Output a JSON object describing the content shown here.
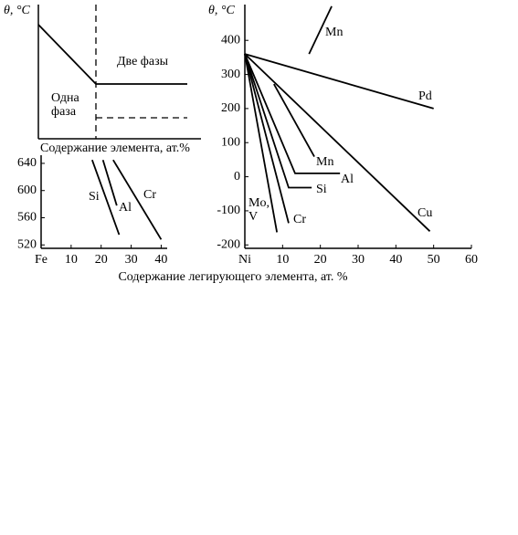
{
  "schematic": {
    "ylabel": "θ, °C",
    "two_phase": "Две фазы",
    "one_phase": "Одна фаза",
    "xlabel": "Содержание элемента, ат.%"
  },
  "shared_xlabel": "Содержание легирующего элемента, ат. %",
  "chart_data": [
    {
      "type": "line",
      "xlim": [
        0,
        42
      ],
      "ylim": [
        515,
        652
      ],
      "xticks": [
        {
          "value": 0,
          "label": "Fe"
        },
        10,
        20,
        30,
        40
      ],
      "yticks": [
        520,
        560,
        600,
        640
      ],
      "series": [
        {
          "name": "Si",
          "color": "#000000",
          "x": [
            17,
            26
          ],
          "values": [
            645,
            535
          ]
        },
        {
          "name": "Al",
          "color": "#000000",
          "x": [
            20.6,
            25.2
          ],
          "values": [
            645,
            578
          ]
        },
        {
          "name": "Cr",
          "color": "#000000",
          "x": [
            24,
            40
          ],
          "values": [
            645,
            528
          ]
        }
      ]
    },
    {
      "type": "line",
      "ylabel": "θ, °C",
      "xlim": [
        0,
        60
      ],
      "ylim": [
        -210,
        505
      ],
      "xticks": [
        {
          "value": 0,
          "label": "Ni"
        },
        10,
        20,
        30,
        40,
        50,
        60
      ],
      "yticks": [
        -200,
        -100,
        0,
        100,
        200,
        300,
        400
      ],
      "series": [
        {
          "name": "Pd",
          "color": "#000000",
          "x": [
            0,
            50
          ],
          "values": [
            360,
            200
          ]
        },
        {
          "name": "Cu",
          "color": "#000000",
          "x": [
            0,
            49
          ],
          "values": [
            360,
            -160
          ]
        },
        {
          "name": "Mn",
          "color": "#000000",
          "x": [
            17,
            23
          ],
          "values": [
            360,
            500
          ]
        },
        {
          "name": "Mn",
          "color": "#000000",
          "x": [
            7.7,
            18.4
          ],
          "values": [
            272,
            59
          ]
        },
        {
          "name": "Al",
          "color": "#000000",
          "x": [
            0,
            13.3,
            25.2
          ],
          "values": [
            360,
            10,
            10
          ]
        },
        {
          "name": "Si",
          "color": "#000000",
          "x": [
            0,
            11.6,
            17.7
          ],
          "values": [
            360,
            -32,
            -32
          ]
        },
        {
          "name": "Cr",
          "color": "#000000",
          "x": [
            0,
            11.6
          ],
          "values": [
            360,
            -136
          ]
        },
        {
          "name": "Mo, V",
          "color": "#000000",
          "x": [
            0,
            8.5
          ],
          "values": [
            360,
            -163
          ]
        }
      ]
    }
  ]
}
